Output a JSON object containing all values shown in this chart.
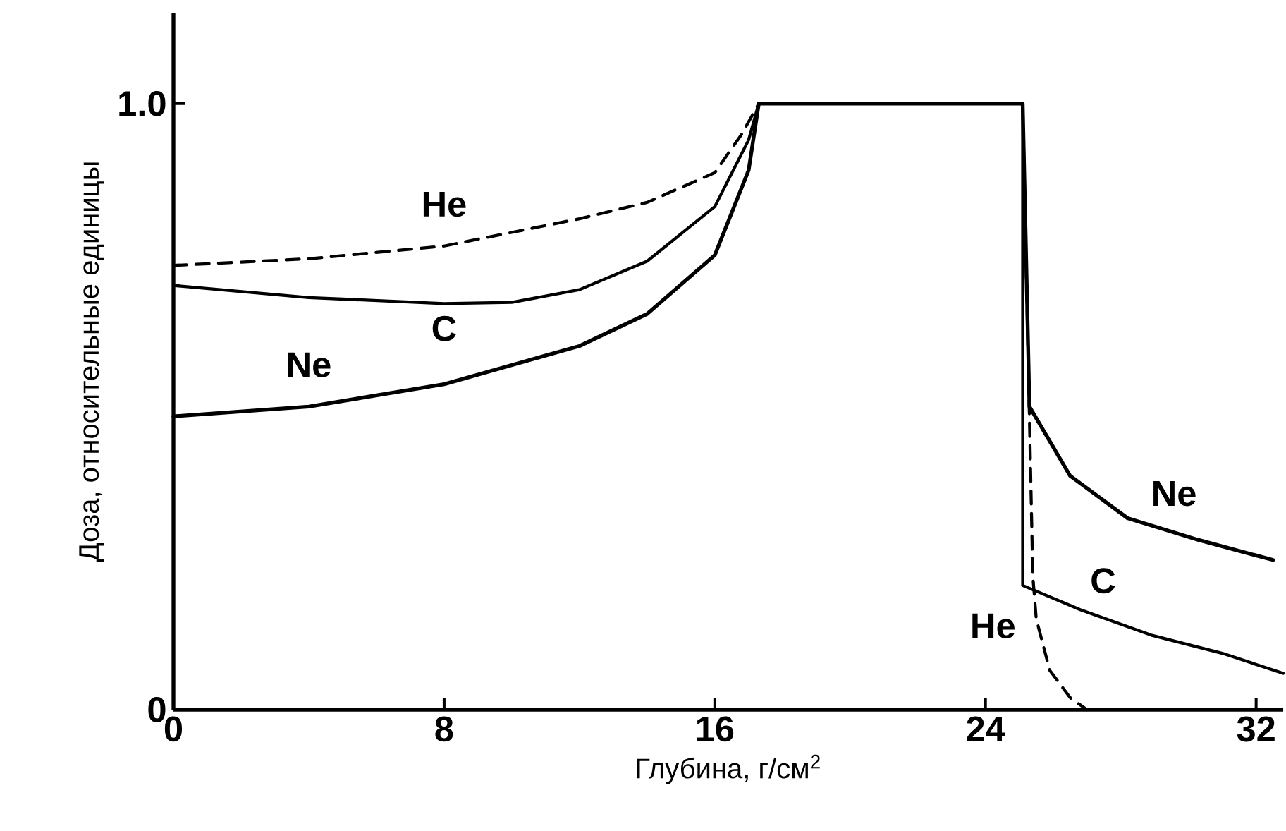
{
  "chart_data": {
    "type": "line",
    "xlabel": "Глубина, г/см$^{2}$",
    "ylabel": "Доза, относительные единицы",
    "xlim": [
      0,
      32.8
    ],
    "ylim": [
      0,
      1.15
    ],
    "xticks": [
      0,
      8,
      16,
      24,
      32
    ],
    "yticks": [
      0,
      {
        "value": 1,
        "label": "1.0"
      }
    ],
    "grid": false,
    "legend": false,
    "series": [
      {
        "name": "He",
        "color": "#000000",
        "line_style": "dashed",
        "x": [
          0,
          4,
          8,
          12,
          14,
          16,
          16.8,
          17.3,
          25.1,
          25.4,
          25.5,
          25.9,
          26.5,
          27.0
        ],
        "values": [
          0.733,
          0.744,
          0.765,
          0.81,
          0.837,
          0.886,
          0.95,
          1.0,
          1.0,
          0.22,
          0.15,
          0.065,
          0.02,
          0
        ]
      },
      {
        "name": "C",
        "color": "#000000",
        "line_style": "solid",
        "x": [
          0,
          4,
          8,
          10,
          12,
          14,
          16,
          17,
          17.3,
          25.1,
          25.1,
          26.8,
          28.9,
          31,
          32.8
        ],
        "values": [
          0.7,
          0.68,
          0.67,
          0.672,
          0.693,
          0.74,
          0.83,
          0.94,
          1.0,
          1.0,
          0.205,
          0.165,
          0.123,
          0.093,
          0.06
        ]
      },
      {
        "name": "Ne",
        "color": "#000000",
        "line_style": "solid",
        "x": [
          0,
          4,
          8,
          12,
          14,
          16,
          17,
          17.3,
          25.1,
          25.3,
          26.5,
          28.2,
          30.3,
          32.5
        ],
        "values": [
          0.484,
          0.5,
          0.537,
          0.6,
          0.653,
          0.75,
          0.89,
          1.0,
          1.0,
          0.5,
          0.386,
          0.316,
          0.28,
          0.247
        ]
      }
    ],
    "annotations": [
      "He",
      "C",
      "Ne"
    ]
  }
}
